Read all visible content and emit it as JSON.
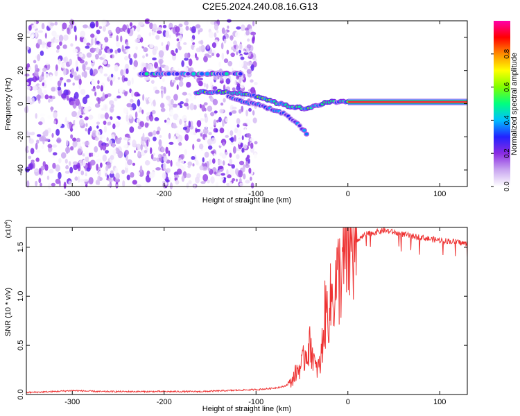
{
  "title": "C2E5.2024.240.08.16.G13",
  "chart_data": [
    {
      "type": "heatmap",
      "xlabel": "Height of straight line (km)",
      "ylabel": "Frequency (Hz)",
      "xlim": [
        -350,
        130
      ],
      "ylim": [
        -50,
        50
      ],
      "xticks": [
        -300,
        -200,
        -100,
        0,
        100
      ],
      "yticks": [
        -40,
        -20,
        0,
        20,
        40
      ],
      "colorbar": {
        "label": "Normalized spectral amplitude",
        "range": [
          0,
          1
        ],
        "ticks": [
          0.0,
          0.2,
          0.4,
          0.6,
          0.8
        ],
        "tick_labels": [
          "0.0",
          "0.2",
          "0.4",
          "0.6",
          "0.8"
        ],
        "colors": [
          "#ffffff",
          "#c9a6f0",
          "#8a2be2",
          "#2222ff",
          "#00bfff",
          "#00ff7f",
          "#7fff00",
          "#ffff00",
          "#ff8c00",
          "#ff0000",
          "#ff00aa"
        ]
      },
      "noise_region": {
        "x_range": [
          -350,
          -100
        ],
        "amplitude_range": [
          0.0,
          0.25
        ]
      },
      "features": [
        {
          "name": "tone-20Hz",
          "x_range": [
            -225,
            -115
          ],
          "frequency": 18,
          "amplitude": 0.35
        },
        {
          "name": "tone-upper",
          "points": [
            [
              -165,
              7
            ],
            [
              -140,
              7
            ],
            [
              -110,
              6
            ],
            [
              -90,
              3
            ],
            [
              -75,
              0
            ],
            [
              -60,
              -2
            ],
            [
              -45,
              -3
            ],
            [
              -35,
              -1
            ],
            [
              -20,
              1
            ],
            [
              0,
              1
            ]
          ],
          "amplitude": 0.45
        },
        {
          "name": "tone-lower",
          "points": [
            [
              -130,
              4
            ],
            [
              -110,
              1
            ],
            [
              -90,
              -2
            ],
            [
              -70,
              -6
            ],
            [
              -55,
              -12
            ],
            [
              -45,
              -18
            ]
          ],
          "amplitude": 0.3
        },
        {
          "name": "carrier",
          "x_range": [
            0,
            130
          ],
          "frequency": 1,
          "amplitude": 0.95
        }
      ]
    },
    {
      "type": "line",
      "xlabel": "Height of straight line (km)",
      "ylabel": "SNR (10 * v/v)",
      "y_multiplier": "(x10^4)",
      "y_multiplier_base": "(x10",
      "y_multiplier_exp": "4",
      "xlim": [
        -350,
        130
      ],
      "ylim": [
        0,
        1.7
      ],
      "xticks": [
        -300,
        -200,
        -100,
        0,
        100
      ],
      "yticks": [
        0.0,
        0.5,
        1.0,
        1.5
      ],
      "ytick_labels": [
        "0.0",
        "0.5",
        "1.0",
        "1.5"
      ],
      "color": "#ee3333",
      "series": [
        {
          "x": [
            -350,
            -320,
            -300,
            -270,
            -240,
            -200,
            -160,
            -130,
            -100,
            -85,
            -70,
            -62,
            -55,
            -50,
            -45,
            -40,
            -35,
            -30,
            -25,
            -20,
            -15,
            -10,
            -5,
            0,
            5,
            10,
            15,
            20,
            30,
            40,
            50,
            60,
            70,
            80,
            90,
            100,
            110,
            120,
            130
          ],
          "y": [
            0.02,
            0.03,
            0.04,
            0.03,
            0.03,
            0.03,
            0.03,
            0.04,
            0.05,
            0.06,
            0.08,
            0.12,
            0.25,
            0.3,
            0.45,
            0.5,
            0.25,
            0.3,
            0.8,
            0.9,
            1.05,
            1.2,
            1.3,
            1.45,
            1.5,
            1.55,
            1.6,
            1.63,
            1.65,
            1.67,
            1.65,
            1.63,
            1.61,
            1.6,
            1.58,
            1.57,
            1.56,
            1.55,
            1.53
          ]
        }
      ]
    }
  ]
}
